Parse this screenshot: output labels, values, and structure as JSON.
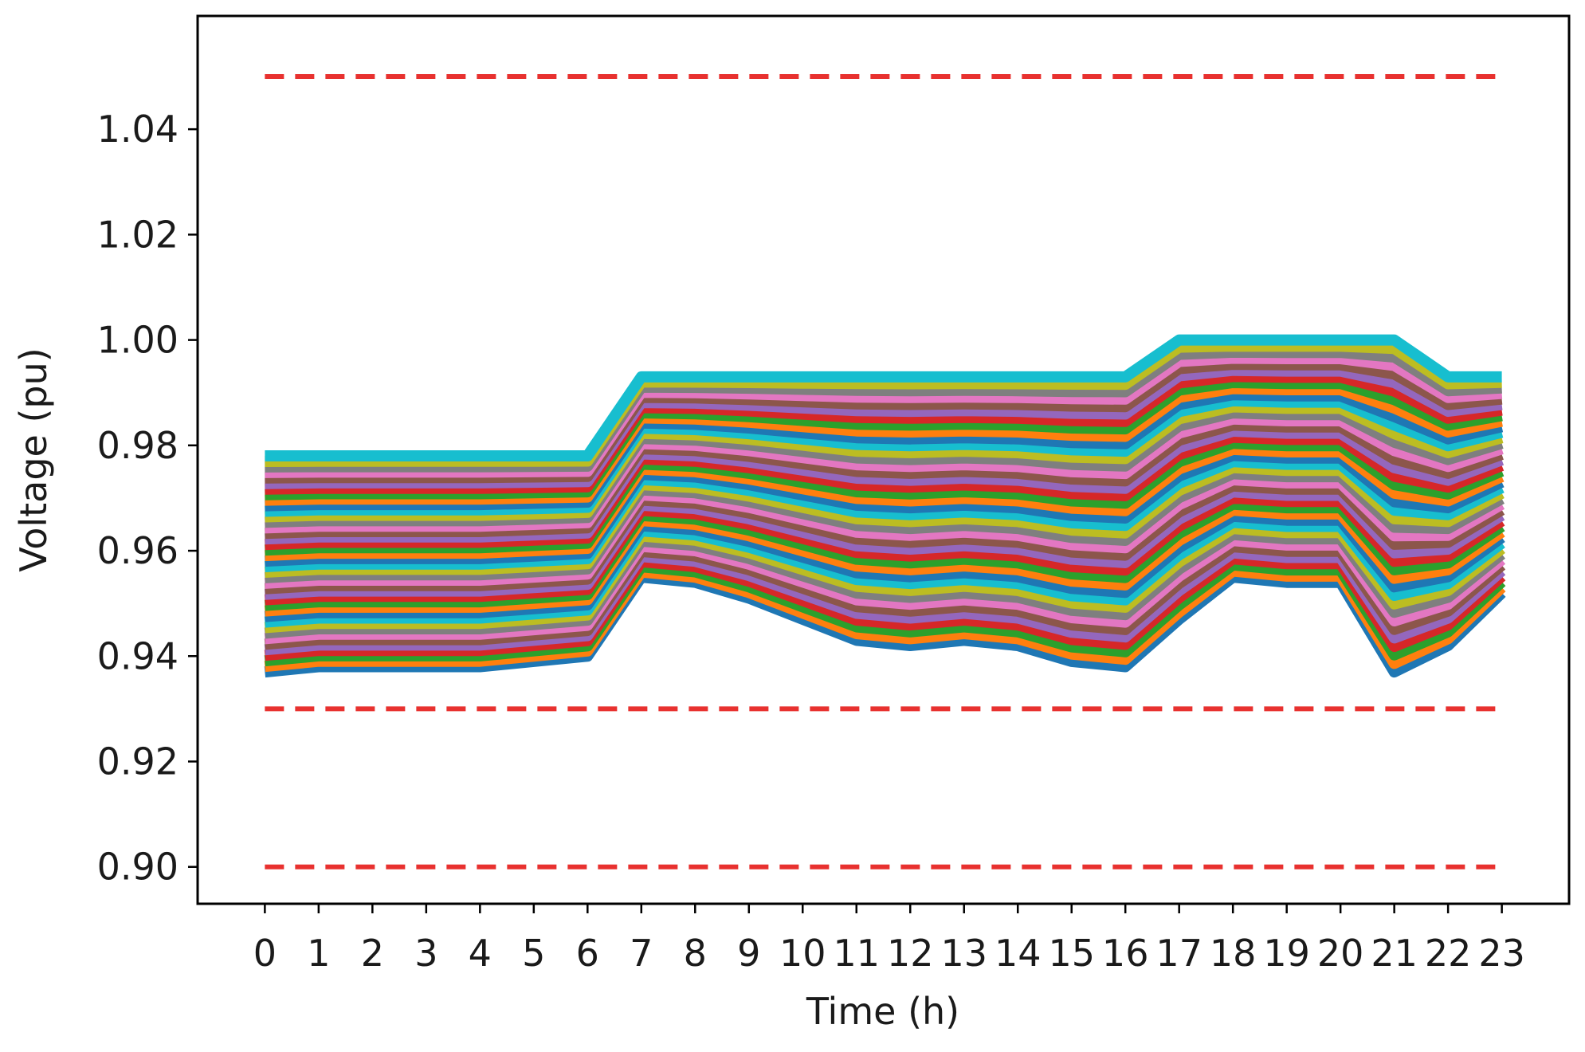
{
  "chart_data": {
    "type": "line",
    "title": "",
    "xlabel": "Time (h)",
    "ylabel": "Voltage (pu)",
    "x": [
      0,
      1,
      2,
      3,
      4,
      5,
      6,
      7,
      8,
      9,
      10,
      11,
      12,
      13,
      14,
      15,
      16,
      17,
      18,
      19,
      20,
      21,
      22,
      23
    ],
    "x_tick_labels": [
      "0",
      "1",
      "2",
      "3",
      "4",
      "5",
      "6",
      "7",
      "8",
      "9",
      "10",
      "11",
      "12",
      "13",
      "14",
      "15",
      "16",
      "17",
      "18",
      "19",
      "20",
      "21",
      "22",
      "23"
    ],
    "y_tick_labels": [
      "0.90",
      "0.92",
      "0.94",
      "0.96",
      "0.98",
      "1.00",
      "1.02",
      "1.04"
    ],
    "y_ticks": [
      0.9,
      0.92,
      0.94,
      0.96,
      0.98,
      1.0,
      1.02,
      1.04
    ],
    "xlim": [
      -1.25,
      24.25
    ],
    "ylim": [
      0.893,
      1.0615
    ],
    "grid": false,
    "legend": "none",
    "bus_voltage_envelope": {
      "upper": [
        0.978,
        0.978,
        0.978,
        0.978,
        0.978,
        0.978,
        0.978,
        0.993,
        0.993,
        0.993,
        0.993,
        0.993,
        0.993,
        0.993,
        0.993,
        0.993,
        0.993,
        1.0,
        1.0,
        1.0,
        1.0,
        1.0,
        0.993,
        0.993
      ],
      "lower": [
        0.937,
        0.938,
        0.938,
        0.938,
        0.938,
        0.939,
        0.94,
        0.955,
        0.954,
        0.951,
        0.947,
        0.943,
        0.942,
        0.943,
        0.942,
        0.939,
        0.938,
        0.947,
        0.955,
        0.954,
        0.954,
        0.937,
        0.942,
        0.952
      ],
      "series_count": 40
    },
    "limit_lines": [
      {
        "value": 1.05,
        "color": "#e8312f",
        "style": "dashed"
      },
      {
        "value": 0.93,
        "color": "#e8312f",
        "style": "dashed"
      },
      {
        "value": 0.9,
        "color": "#e8312f",
        "style": "dashed"
      }
    ],
    "series_palette": [
      "#1f77b4",
      "#ff7f0e",
      "#2ca02c",
      "#d62728",
      "#9467bd",
      "#8c564b",
      "#e377c2",
      "#7f7f7f",
      "#bcbd22",
      "#17becf"
    ]
  }
}
